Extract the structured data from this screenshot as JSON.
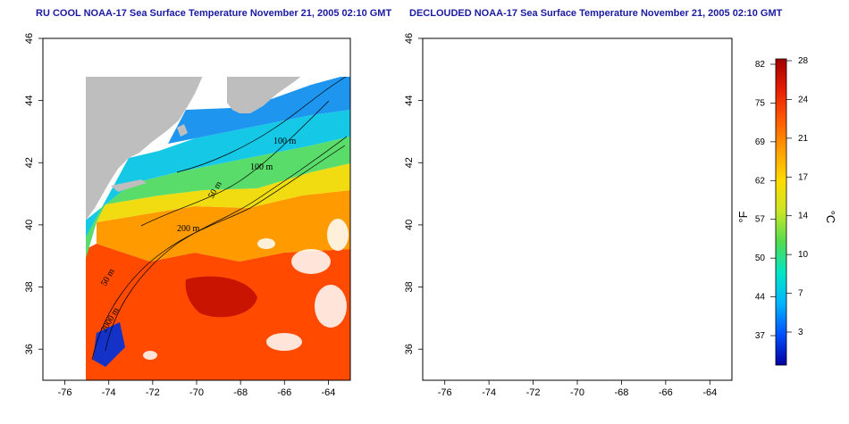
{
  "panels": [
    {
      "title": "RU COOL NOAA-17 Sea Surface Temperature November 21, 2005 02:10 GMT",
      "mode": "full"
    },
    {
      "title": "DECLOUDED NOAA-17 Sea Surface Temperature November 21, 2005 02:10 GMT",
      "mode": "declouded"
    }
  ],
  "map": {
    "lon_range": [
      -77,
      -63
    ],
    "lat_range": [
      35,
      46
    ],
    "lon_ticks": [
      "-76",
      "-74",
      "-72",
      "-70",
      "-68",
      "-66",
      "-64"
    ],
    "lat_ticks": [
      "36",
      "38",
      "40",
      "42",
      "44",
      "46"
    ],
    "isobath_labels": [
      "100 m",
      "100 m",
      "50 m",
      "200 m",
      "50 m",
      "2000 m"
    ]
  },
  "colorbar": {
    "fahrenheit_label": "°F",
    "celsius_label": "°C",
    "fahrenheit_ticks": [
      "82",
      "75",
      "69",
      "62",
      "57",
      "50",
      "44",
      "37"
    ],
    "celsius_ticks": [
      "28",
      "24",
      "21",
      "17",
      "14",
      "10",
      "7",
      "3"
    ],
    "colors": [
      "#0000a0",
      "#0050ff",
      "#00b4ff",
      "#00e6c8",
      "#50dc50",
      "#c8e628",
      "#ffdc00",
      "#ffa000",
      "#ff5a00",
      "#e61e00",
      "#a00000"
    ]
  },
  "colors": {
    "land": "#bebebe",
    "title": "#1a1aa0",
    "cloud": "#ffffff"
  }
}
